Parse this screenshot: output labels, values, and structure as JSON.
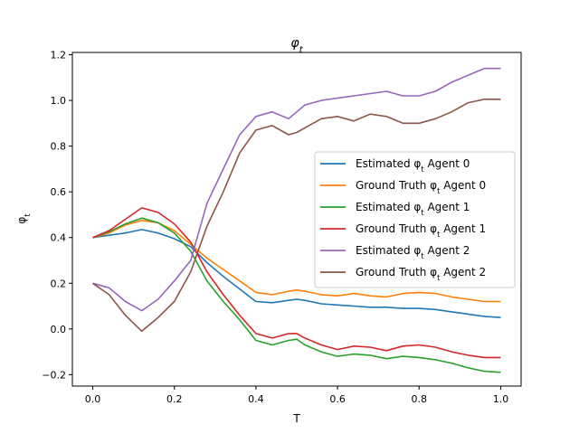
{
  "chart_data": {
    "type": "line",
    "title": "φ_t",
    "xlabel": "T",
    "ylabel": "φ_t",
    "xlim": [
      -0.05,
      1.05
    ],
    "ylim": [
      -0.25,
      1.21
    ],
    "x_ticks": [
      0.0,
      0.2,
      0.4,
      0.6,
      0.8,
      1.0
    ],
    "x_tick_labels": [
      "0.0",
      "0.2",
      "0.4",
      "0.6",
      "0.8",
      "1.0"
    ],
    "y_ticks": [
      -0.2,
      0.0,
      0.2,
      0.4,
      0.6,
      0.8,
      1.0,
      1.2
    ],
    "y_tick_labels": [
      "−0.2",
      "0.0",
      "0.2",
      "0.4",
      "0.6",
      "0.8",
      "1.0",
      "1.2"
    ],
    "grid": false,
    "legend_position": "center-right",
    "x": [
      0.0,
      0.04,
      0.08,
      0.12,
      0.16,
      0.2,
      0.24,
      0.28,
      0.32,
      0.36,
      0.4,
      0.44,
      0.48,
      0.5,
      0.52,
      0.56,
      0.6,
      0.64,
      0.68,
      0.72,
      0.76,
      0.8,
      0.84,
      0.88,
      0.92,
      0.96,
      1.0
    ],
    "series": [
      {
        "name": "Estimated φ_t Agent 0",
        "color": "#1f77b4",
        "values": [
          0.4,
          0.41,
          0.42,
          0.435,
          0.42,
          0.395,
          0.36,
          0.29,
          0.23,
          0.175,
          0.12,
          0.115,
          0.125,
          0.13,
          0.125,
          0.11,
          0.105,
          0.1,
          0.095,
          0.095,
          0.09,
          0.09,
          0.085,
          0.075,
          0.065,
          0.055,
          0.05
        ]
      },
      {
        "name": "Ground Truth φ_t Agent 0",
        "color": "#ff7f0e",
        "values": [
          0.4,
          0.42,
          0.455,
          0.475,
          0.465,
          0.43,
          0.37,
          0.31,
          0.26,
          0.21,
          0.16,
          0.15,
          0.165,
          0.17,
          0.165,
          0.15,
          0.145,
          0.155,
          0.145,
          0.14,
          0.155,
          0.16,
          0.155,
          0.14,
          0.13,
          0.12,
          0.12
        ]
      },
      {
        "name": "Estimated φ_t Agent 1",
        "color": "#2ca02c",
        "values": [
          0.4,
          0.425,
          0.46,
          0.485,
          0.465,
          0.42,
          0.34,
          0.21,
          0.12,
          0.04,
          -0.05,
          -0.07,
          -0.05,
          -0.045,
          -0.07,
          -0.1,
          -0.12,
          -0.11,
          -0.115,
          -0.13,
          -0.12,
          -0.125,
          -0.135,
          -0.15,
          -0.17,
          -0.185,
          -0.19
        ]
      },
      {
        "name": "Ground Truth φ_t Agent 1",
        "color": "#d62728",
        "values": [
          0.4,
          0.43,
          0.48,
          0.53,
          0.51,
          0.46,
          0.38,
          0.25,
          0.15,
          0.06,
          -0.02,
          -0.04,
          -0.02,
          -0.02,
          -0.04,
          -0.07,
          -0.09,
          -0.075,
          -0.08,
          -0.095,
          -0.075,
          -0.07,
          -0.08,
          -0.1,
          -0.115,
          -0.125,
          -0.125
        ]
      },
      {
        "name": "Estimated φ_t Agent 2",
        "color": "#9467bd",
        "values": [
          0.2,
          0.18,
          0.12,
          0.08,
          0.13,
          0.21,
          0.3,
          0.55,
          0.7,
          0.85,
          0.93,
          0.95,
          0.92,
          0.95,
          0.98,
          1.0,
          1.01,
          1.02,
          1.03,
          1.04,
          1.02,
          1.02,
          1.04,
          1.08,
          1.11,
          1.14,
          1.14
        ]
      },
      {
        "name": "Ground Truth φ_t Agent 2",
        "color": "#8c564b",
        "values": [
          0.2,
          0.15,
          0.06,
          -0.01,
          0.05,
          0.12,
          0.25,
          0.45,
          0.6,
          0.77,
          0.87,
          0.89,
          0.85,
          0.86,
          0.88,
          0.92,
          0.93,
          0.91,
          0.94,
          0.93,
          0.9,
          0.9,
          0.92,
          0.95,
          0.99,
          1.005,
          1.005
        ]
      }
    ]
  }
}
